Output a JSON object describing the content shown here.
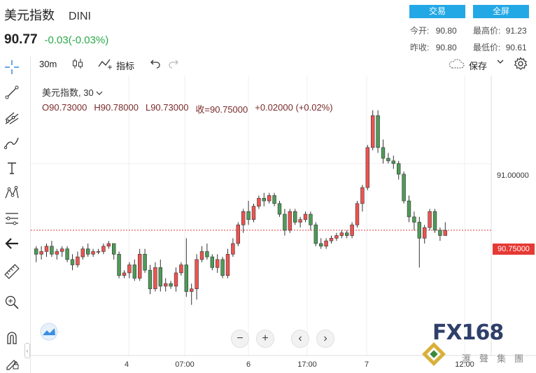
{
  "header": {
    "title": "美元指数",
    "symbol": "DINI",
    "price": "90.77",
    "change": "-0.03(-0.03%)",
    "trade_button": "交易",
    "fullscreen_button": "全屏",
    "stats": {
      "open_label": "今开:",
      "open_value": "90.80",
      "high_label": "最高价:",
      "high_value": "91.23",
      "prev_close_label": "昨收:",
      "prev_close_value": "90.80",
      "low_label": "最低价:",
      "low_value": "90.61"
    }
  },
  "toolbar": {
    "interval": "30m",
    "indicators_label": "指标",
    "save_label": "保存"
  },
  "legend": {
    "name": "美元指数, 30",
    "open": "O90.73000",
    "high": "H90.78000",
    "low": "L90.73000",
    "close": "收=90.75000",
    "change": "+0.02000 (+0.02%)"
  },
  "colors": {
    "up": "#e53935",
    "down": "#2e7d32",
    "accent": "#23a8e6"
  },
  "chart_data": {
    "type": "candlestick",
    "x_ticks": [
      "4",
      "07:00",
      "6",
      "17:00",
      "7",
      "12:00"
    ],
    "y_ticks": [
      91.0
    ],
    "ylim": [
      90.28,
      91.33
    ],
    "current_price": 90.75,
    "current_price_label": "90.75000",
    "tick_label": "91.00000",
    "candles": [
      {
        "o": 90.68,
        "h": 90.69,
        "l": 90.63,
        "c": 90.66
      },
      {
        "o": 90.66,
        "h": 90.69,
        "l": 90.64,
        "c": 90.67
      },
      {
        "o": 90.67,
        "h": 90.7,
        "l": 90.65,
        "c": 90.69
      },
      {
        "o": 90.69,
        "h": 90.71,
        "l": 90.65,
        "c": 90.66
      },
      {
        "o": 90.66,
        "h": 90.68,
        "l": 90.64,
        "c": 90.67
      },
      {
        "o": 90.67,
        "h": 90.69,
        "l": 90.65,
        "c": 90.68
      },
      {
        "o": 90.68,
        "h": 90.69,
        "l": 90.63,
        "c": 90.64
      },
      {
        "o": 90.64,
        "h": 90.66,
        "l": 90.6,
        "c": 90.62
      },
      {
        "o": 90.62,
        "h": 90.67,
        "l": 90.61,
        "c": 90.65
      },
      {
        "o": 90.65,
        "h": 90.69,
        "l": 90.64,
        "c": 90.68
      },
      {
        "o": 90.68,
        "h": 90.7,
        "l": 90.65,
        "c": 90.66
      },
      {
        "o": 90.66,
        "h": 90.68,
        "l": 90.65,
        "c": 90.67
      },
      {
        "o": 90.67,
        "h": 90.68,
        "l": 90.66,
        "c": 90.67
      },
      {
        "o": 90.67,
        "h": 90.7,
        "l": 90.66,
        "c": 90.69
      },
      {
        "o": 90.69,
        "h": 90.71,
        "l": 90.68,
        "c": 90.7
      },
      {
        "o": 90.7,
        "h": 90.7,
        "l": 90.64,
        "c": 90.66
      },
      {
        "o": 90.66,
        "h": 90.67,
        "l": 90.57,
        "c": 90.58
      },
      {
        "o": 90.58,
        "h": 90.6,
        "l": 90.57,
        "c": 90.59
      },
      {
        "o": 90.59,
        "h": 90.63,
        "l": 90.57,
        "c": 90.62
      },
      {
        "o": 90.62,
        "h": 90.64,
        "l": 90.56,
        "c": 90.57
      },
      {
        "o": 90.57,
        "h": 90.68,
        "l": 90.56,
        "c": 90.66
      },
      {
        "o": 90.66,
        "h": 90.68,
        "l": 90.59,
        "c": 90.6
      },
      {
        "o": 90.6,
        "h": 90.62,
        "l": 90.51,
        "c": 90.53
      },
      {
        "o": 90.53,
        "h": 90.63,
        "l": 90.52,
        "c": 90.61
      },
      {
        "o": 90.61,
        "h": 90.64,
        "l": 90.52,
        "c": 90.54
      },
      {
        "o": 90.54,
        "h": 90.57,
        "l": 90.52,
        "c": 90.55
      },
      {
        "o": 90.55,
        "h": 90.56,
        "l": 90.53,
        "c": 90.54
      },
      {
        "o": 90.54,
        "h": 90.61,
        "l": 90.52,
        "c": 90.59
      },
      {
        "o": 90.59,
        "h": 90.63,
        "l": 90.58,
        "c": 90.62
      },
      {
        "o": 90.62,
        "h": 90.72,
        "l": 90.5,
        "c": 90.52
      },
      {
        "o": 90.52,
        "h": 90.55,
        "l": 90.47,
        "c": 90.53
      },
      {
        "o": 90.53,
        "h": 90.66,
        "l": 90.49,
        "c": 90.64
      },
      {
        "o": 90.64,
        "h": 90.69,
        "l": 90.63,
        "c": 90.67
      },
      {
        "o": 90.67,
        "h": 90.7,
        "l": 90.64,
        "c": 90.65
      },
      {
        "o": 90.65,
        "h": 90.66,
        "l": 90.6,
        "c": 90.61
      },
      {
        "o": 90.61,
        "h": 90.66,
        "l": 90.59,
        "c": 90.64
      },
      {
        "o": 90.64,
        "h": 90.65,
        "l": 90.57,
        "c": 90.58
      },
      {
        "o": 90.58,
        "h": 90.68,
        "l": 90.57,
        "c": 90.66
      },
      {
        "o": 90.66,
        "h": 90.72,
        "l": 90.65,
        "c": 90.7
      },
      {
        "o": 90.7,
        "h": 90.78,
        "l": 90.69,
        "c": 90.77
      },
      {
        "o": 90.77,
        "h": 90.83,
        "l": 90.74,
        "c": 90.82
      },
      {
        "o": 90.82,
        "h": 90.86,
        "l": 90.77,
        "c": 90.79
      },
      {
        "o": 90.79,
        "h": 90.85,
        "l": 90.78,
        "c": 90.84
      },
      {
        "o": 90.84,
        "h": 90.88,
        "l": 90.83,
        "c": 90.87
      },
      {
        "o": 90.87,
        "h": 90.89,
        "l": 90.84,
        "c": 90.86
      },
      {
        "o": 90.86,
        "h": 90.89,
        "l": 90.85,
        "c": 90.88
      },
      {
        "o": 90.88,
        "h": 90.89,
        "l": 90.84,
        "c": 90.85
      },
      {
        "o": 90.85,
        "h": 90.86,
        "l": 90.8,
        "c": 90.81
      },
      {
        "o": 90.81,
        "h": 90.83,
        "l": 90.73,
        "c": 90.75
      },
      {
        "o": 90.75,
        "h": 90.83,
        "l": 90.74,
        "c": 90.82
      },
      {
        "o": 90.82,
        "h": 90.83,
        "l": 90.77,
        "c": 90.78
      },
      {
        "o": 90.78,
        "h": 90.8,
        "l": 90.76,
        "c": 90.79
      },
      {
        "o": 90.79,
        "h": 90.82,
        "l": 90.78,
        "c": 90.81
      },
      {
        "o": 90.81,
        "h": 90.82,
        "l": 90.75,
        "c": 90.77
      },
      {
        "o": 90.77,
        "h": 90.78,
        "l": 90.69,
        "c": 90.7
      },
      {
        "o": 90.7,
        "h": 90.72,
        "l": 90.68,
        "c": 90.69
      },
      {
        "o": 90.69,
        "h": 90.72,
        "l": 90.68,
        "c": 90.71
      },
      {
        "o": 90.71,
        "h": 90.73,
        "l": 90.7,
        "c": 90.72
      },
      {
        "o": 90.72,
        "h": 90.74,
        "l": 90.71,
        "c": 90.73
      },
      {
        "o": 90.73,
        "h": 90.75,
        "l": 90.72,
        "c": 90.74
      },
      {
        "o": 90.74,
        "h": 90.75,
        "l": 90.72,
        "c": 90.73
      },
      {
        "o": 90.73,
        "h": 90.78,
        "l": 90.72,
        "c": 90.77
      },
      {
        "o": 90.77,
        "h": 90.86,
        "l": 90.76,
        "c": 90.85
      },
      {
        "o": 90.85,
        "h": 90.92,
        "l": 90.82,
        "c": 90.91
      },
      {
        "o": 90.91,
        "h": 91.07,
        "l": 90.9,
        "c": 91.06
      },
      {
        "o": 91.06,
        "h": 91.2,
        "l": 91.05,
        "c": 91.18
      },
      {
        "o": 91.18,
        "h": 91.2,
        "l": 91.04,
        "c": 91.06
      },
      {
        "o": 91.06,
        "h": 91.09,
        "l": 91.0,
        "c": 91.02
      },
      {
        "o": 91.02,
        "h": 91.04,
        "l": 91.0,
        "c": 91.01
      },
      {
        "o": 91.01,
        "h": 91.03,
        "l": 90.98,
        "c": 91.0
      },
      {
        "o": 91.0,
        "h": 91.01,
        "l": 90.94,
        "c": 90.96
      },
      {
        "o": 90.96,
        "h": 90.97,
        "l": 90.85,
        "c": 90.86
      },
      {
        "o": 90.86,
        "h": 90.88,
        "l": 90.78,
        "c": 90.8
      },
      {
        "o": 90.8,
        "h": 90.82,
        "l": 90.75,
        "c": 90.78
      },
      {
        "o": 90.78,
        "h": 90.8,
        "l": 90.61,
        "c": 90.72
      },
      {
        "o": 90.72,
        "h": 90.77,
        "l": 90.7,
        "c": 90.76
      },
      {
        "o": 90.76,
        "h": 90.83,
        "l": 90.75,
        "c": 90.82
      },
      {
        "o": 90.82,
        "h": 90.83,
        "l": 90.74,
        "c": 90.75
      },
      {
        "o": 90.75,
        "h": 90.76,
        "l": 90.71,
        "c": 90.73
      },
      {
        "o": 90.73,
        "h": 90.78,
        "l": 90.73,
        "c": 90.75
      }
    ]
  }
}
